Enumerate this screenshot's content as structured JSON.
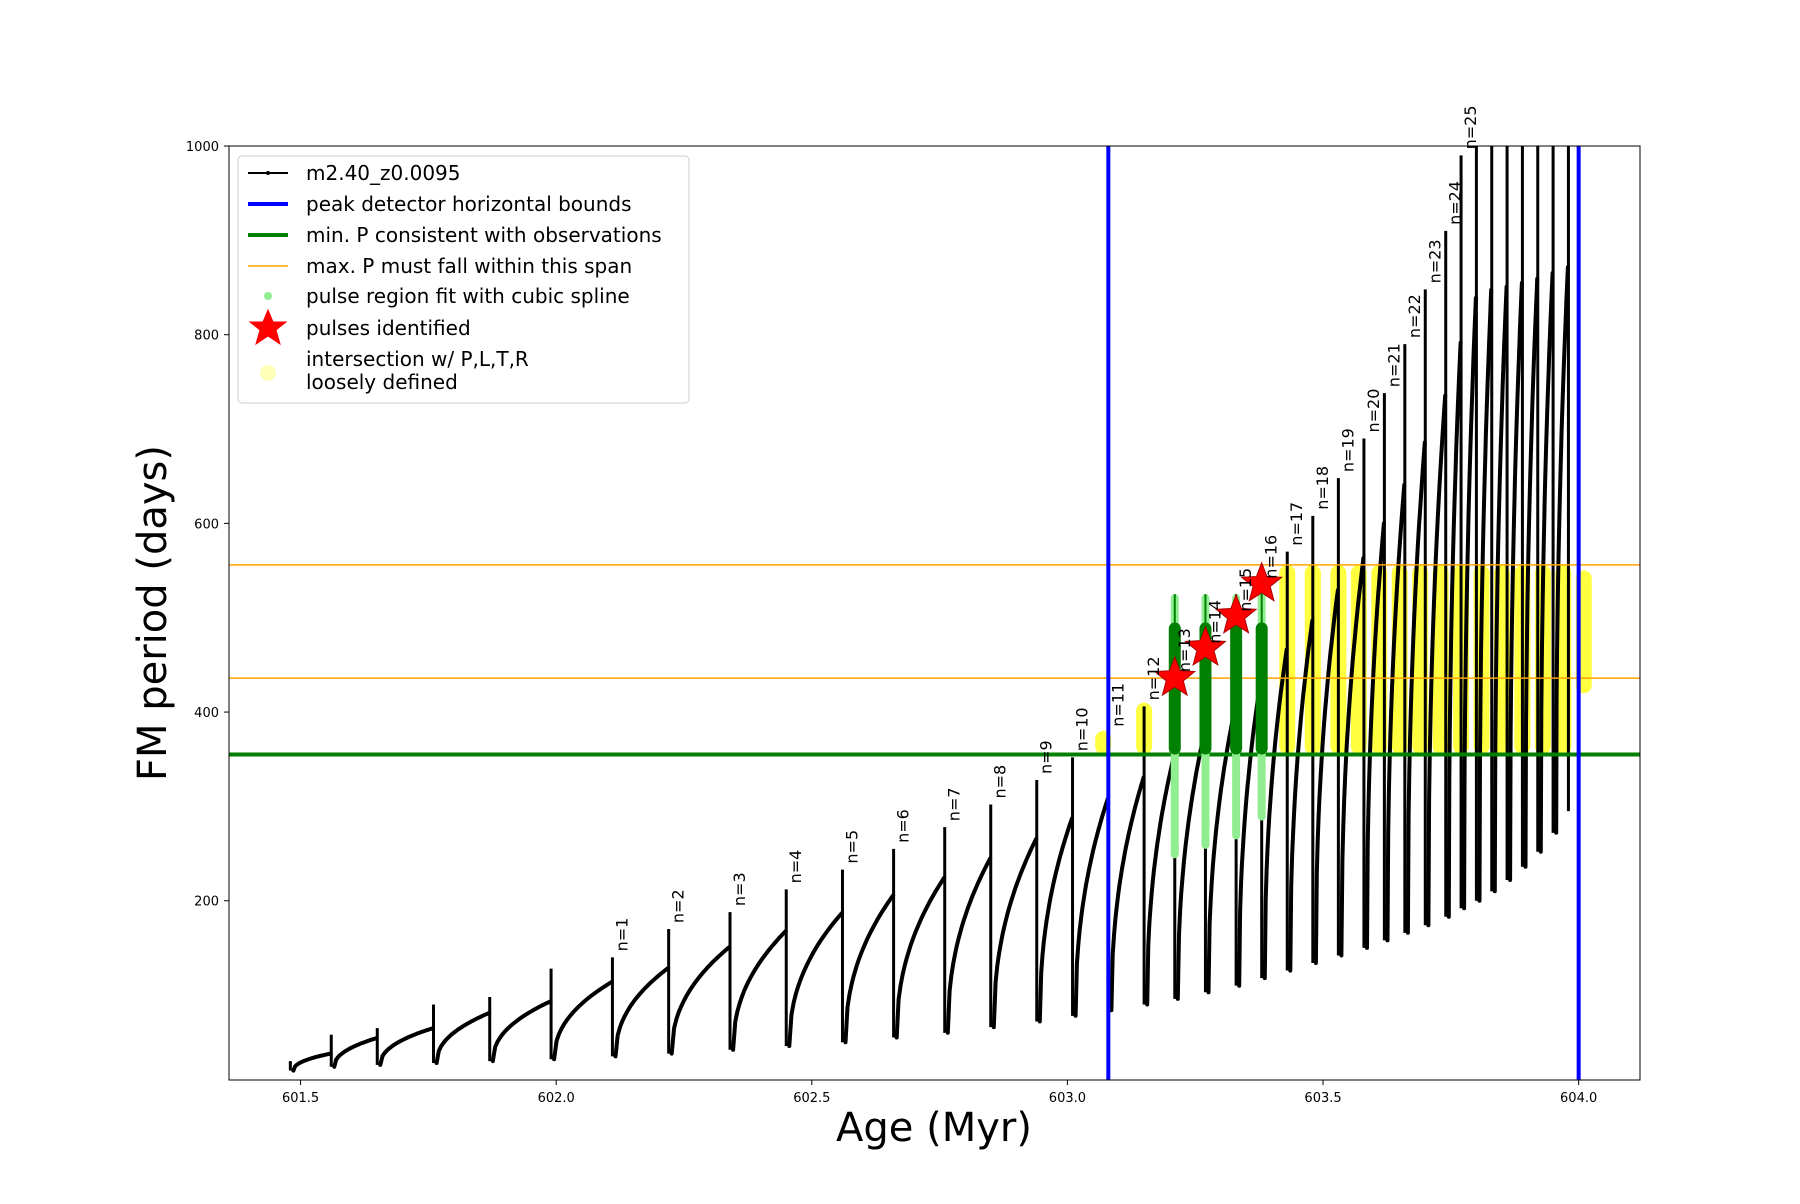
{
  "chart_data": {
    "type": "line",
    "title": "",
    "xlabel": "Age (Myr)",
    "ylabel": "FM period (days)",
    "xlim": [
      601.36,
      604.12
    ],
    "ylim": [
      10,
      1000
    ],
    "xticks": [
      601.5,
      602.0,
      602.5,
      603.0,
      603.5,
      604.0
    ],
    "xtick_labels": [
      "601.5",
      "602.0",
      "602.5",
      "603.0",
      "603.5",
      "604.0"
    ],
    "yticks": [
      200,
      400,
      600,
      800,
      1000
    ],
    "ytick_labels": [
      "200",
      "400",
      "600",
      "800",
      "1000"
    ],
    "grid": false,
    "legend_position": "top-left",
    "legend": {
      "track": "m2.40_z0.0095",
      "bounds": "peak detector horizontal bounds",
      "min_p": "min. P consistent with observations",
      "max_p": "max. P must fall within this span",
      "spline": "pulse region fit with cubic spline",
      "pulses": "pulses identified",
      "intersection_line1": "intersection w/ P,L,T,R",
      "intersection_line2": "loosely defined"
    },
    "colors": {
      "track": "#000000",
      "bounds": "#0000ff",
      "min_p": "#008000",
      "max_p": "#ffa500",
      "spline": "#90ee90",
      "pulses": "#ff0000",
      "intersection": "#ffff00"
    },
    "vertical_bounds_x": [
      603.08,
      604.0
    ],
    "min_p_y": 355,
    "max_p_span_y": [
      436,
      556
    ],
    "pulses": [
      {
        "n": 1,
        "label": "n=1",
        "age": 602.11,
        "peak": 140,
        "trough": 35
      },
      {
        "n": 2,
        "label": "n=2",
        "age": 602.22,
        "peak": 170,
        "trough": 38
      },
      {
        "n": 3,
        "label": "n=3",
        "age": 602.34,
        "peak": 188,
        "trough": 42
      },
      {
        "n": 4,
        "label": "n=4",
        "age": 602.45,
        "peak": 212,
        "trough": 46
      },
      {
        "n": 5,
        "label": "n=5",
        "age": 602.56,
        "peak": 233,
        "trough": 50
      },
      {
        "n": 6,
        "label": "n=6",
        "age": 602.66,
        "peak": 255,
        "trough": 55
      },
      {
        "n": 7,
        "label": "n=7",
        "age": 602.76,
        "peak": 278,
        "trough": 60
      },
      {
        "n": 8,
        "label": "n=8",
        "age": 602.85,
        "peak": 302,
        "trough": 66
      },
      {
        "n": 9,
        "label": "n=9",
        "age": 602.94,
        "peak": 328,
        "trough": 72
      },
      {
        "n": 10,
        "label": "n=10",
        "age": 603.01,
        "peak": 352,
        "trough": 78
      },
      {
        "n": 11,
        "label": "n=11",
        "age": 603.08,
        "peak": 378,
        "trough": 84
      },
      {
        "n": 12,
        "label": "n=12",
        "age": 603.15,
        "peak": 406,
        "trough": 90
      },
      {
        "n": 13,
        "label": "n=13",
        "age": 603.21,
        "peak": 436,
        "trough": 96
      },
      {
        "n": 14,
        "label": "n=14",
        "age": 603.27,
        "peak": 466,
        "trough": 103
      },
      {
        "n": 15,
        "label": "n=15",
        "age": 603.33,
        "peak": 500,
        "trough": 110
      },
      {
        "n": 16,
        "label": "n=16",
        "age": 603.38,
        "peak": 535,
        "trough": 118
      },
      {
        "n": 17,
        "label": "n=17",
        "age": 603.43,
        "peak": 570,
        "trough": 126
      },
      {
        "n": 18,
        "label": "n=18",
        "age": 603.48,
        "peak": 608,
        "trough": 134
      },
      {
        "n": 19,
        "label": "n=19",
        "age": 603.53,
        "peak": 648,
        "trough": 142
      },
      {
        "n": 20,
        "label": "n=20",
        "age": 603.58,
        "peak": 690,
        "trough": 150
      },
      {
        "n": 21,
        "label": "n=21",
        "age": 603.62,
        "peak": 738,
        "trough": 158
      },
      {
        "n": 22,
        "label": "n=22",
        "age": 603.66,
        "peak": 790,
        "trough": 166
      },
      {
        "n": 23,
        "label": "n=23",
        "age": 603.7,
        "peak": 848,
        "trough": 174
      },
      {
        "n": 24,
        "label": "n=24",
        "age": 603.74,
        "peak": 910,
        "trough": 183
      },
      {
        "n": 25,
        "label": "n=25",
        "age": 603.77,
        "peak": 990,
        "trough": 192
      }
    ],
    "pre_pulses": [
      {
        "age": 601.48,
        "peak": 30,
        "trough": 20
      },
      {
        "age": 601.56,
        "peak": 58,
        "trough": 24
      },
      {
        "age": 601.65,
        "peak": 65,
        "trough": 26
      },
      {
        "age": 601.76,
        "peak": 90,
        "trough": 28
      },
      {
        "age": 601.87,
        "peak": 98,
        "trough": 30
      },
      {
        "age": 601.99,
        "peak": 128,
        "trough": 32
      }
    ],
    "late_pulses": [
      {
        "age": 603.8,
        "peak": 1000,
        "trough": 200
      },
      {
        "age": 603.83,
        "peak": 1000,
        "trough": 210
      },
      {
        "age": 603.86,
        "peak": 1000,
        "trough": 222
      },
      {
        "age": 603.89,
        "peak": 1000,
        "trough": 236
      },
      {
        "age": 603.92,
        "peak": 1000,
        "trough": 252
      },
      {
        "age": 603.95,
        "peak": 1000,
        "trough": 272
      },
      {
        "age": 603.98,
        "peak": 1000,
        "trough": 295
      }
    ],
    "identified_pulses": [
      {
        "label": "n=13",
        "age": 603.21,
        "period": 436
      },
      {
        "label": "n=14",
        "age": 603.27,
        "period": 468
      },
      {
        "label": "n=15",
        "age": 603.33,
        "period": 502
      },
      {
        "label": "n=16",
        "age": 603.38,
        "period": 536
      }
    ],
    "spline_regions": [
      {
        "age": 603.21,
        "low": 245,
        "high": 525,
        "green_low": 355,
        "green_high": 495
      },
      {
        "age": 603.27,
        "low": 255,
        "high": 525,
        "green_low": 355,
        "green_high": 495
      },
      {
        "age": 603.33,
        "low": 265,
        "high": 525,
        "green_low": 355,
        "green_high": 495
      },
      {
        "age": 603.38,
        "low": 285,
        "high": 530,
        "green_low": 355,
        "green_high": 495
      }
    ],
    "intersection_regions": [
      {
        "age": 603.07,
        "low": 355,
        "high": 380
      },
      {
        "age": 603.15,
        "low": 355,
        "high": 410
      },
      {
        "age": 603.43,
        "low": 355,
        "high": 556
      },
      {
        "age": 603.48,
        "low": 355,
        "high": 556
      },
      {
        "age": 603.53,
        "low": 355,
        "high": 556
      },
      {
        "age": 603.57,
        "low": 355,
        "high": 556
      },
      {
        "age": 603.61,
        "low": 355,
        "high": 556
      },
      {
        "age": 603.65,
        "low": 355,
        "high": 556
      },
      {
        "age": 603.69,
        "low": 355,
        "high": 556
      },
      {
        "age": 603.73,
        "low": 355,
        "high": 556
      },
      {
        "age": 603.77,
        "low": 355,
        "high": 556
      },
      {
        "age": 603.81,
        "low": 355,
        "high": 556
      },
      {
        "age": 603.85,
        "low": 355,
        "high": 556
      },
      {
        "age": 603.89,
        "low": 355,
        "high": 556
      },
      {
        "age": 603.93,
        "low": 355,
        "high": 556
      },
      {
        "age": 603.97,
        "low": 355,
        "high": 556
      },
      {
        "age": 604.01,
        "low": 420,
        "high": 550
      }
    ]
  }
}
